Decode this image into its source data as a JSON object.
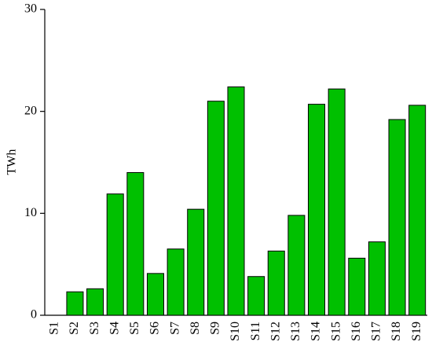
{
  "chart_data": {
    "type": "bar",
    "ylabel": "TWh",
    "categories": [
      "S1",
      "S2",
      "S3",
      "S4",
      "S5",
      "S6",
      "S7",
      "S8",
      "S9",
      "S10",
      "S11",
      "S12",
      "S13",
      "S14",
      "S15",
      "S16",
      "S17",
      "S18",
      "S19"
    ],
    "values": [
      0,
      2.3,
      2.6,
      11.9,
      14.0,
      4.1,
      6.5,
      10.4,
      21.0,
      22.4,
      3.8,
      6.3,
      9.8,
      20.7,
      22.2,
      5.6,
      7.2,
      19.2,
      20.6
    ],
    "color": "#00c000",
    "ylim": [
      0,
      30
    ],
    "yticks": [
      0,
      10,
      20,
      30
    ],
    "grid": false
  }
}
